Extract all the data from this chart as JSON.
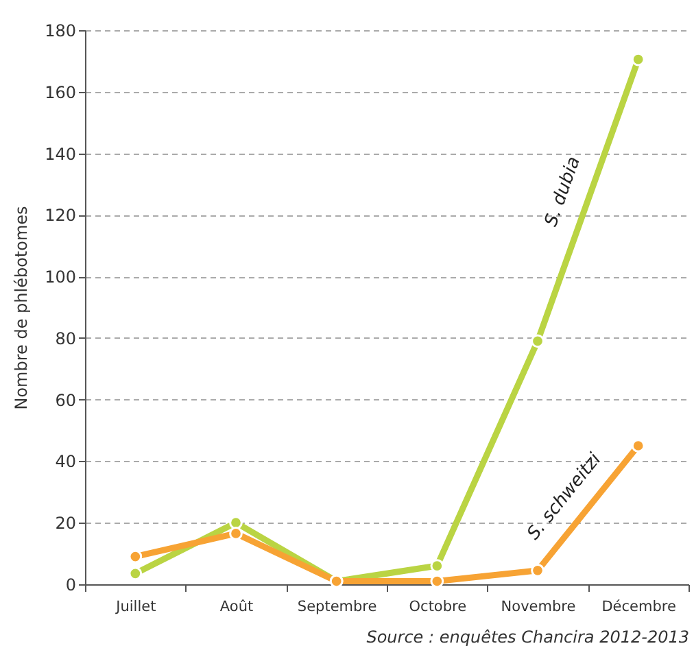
{
  "chart_data": {
    "type": "line",
    "ylabel": "Nombre de phlébotomes",
    "annotations": [
      "Source : enquêtes Chancira 2012-2013"
    ],
    "categories": [
      "Juillet",
      "Août",
      "Septembre",
      "Octobre",
      "Novembre",
      "Décembre"
    ],
    "series": [
      {
        "name": "S. dubia",
        "color": "#bad443",
        "values": [
          3.5,
          20,
          1,
          6,
          79,
          170.5
        ]
      },
      {
        "name": "S. schweitzi",
        "color": "#f7a334",
        "values": [
          9,
          16.5,
          1,
          1,
          4.5,
          45
        ]
      }
    ],
    "ylim": [
      0,
      180
    ],
    "yticks": [
      0,
      20,
      40,
      60,
      80,
      100,
      120,
      140,
      160,
      180
    ],
    "grid": "y",
    "marker": "circle",
    "line_style": "solid",
    "legend": false
  }
}
